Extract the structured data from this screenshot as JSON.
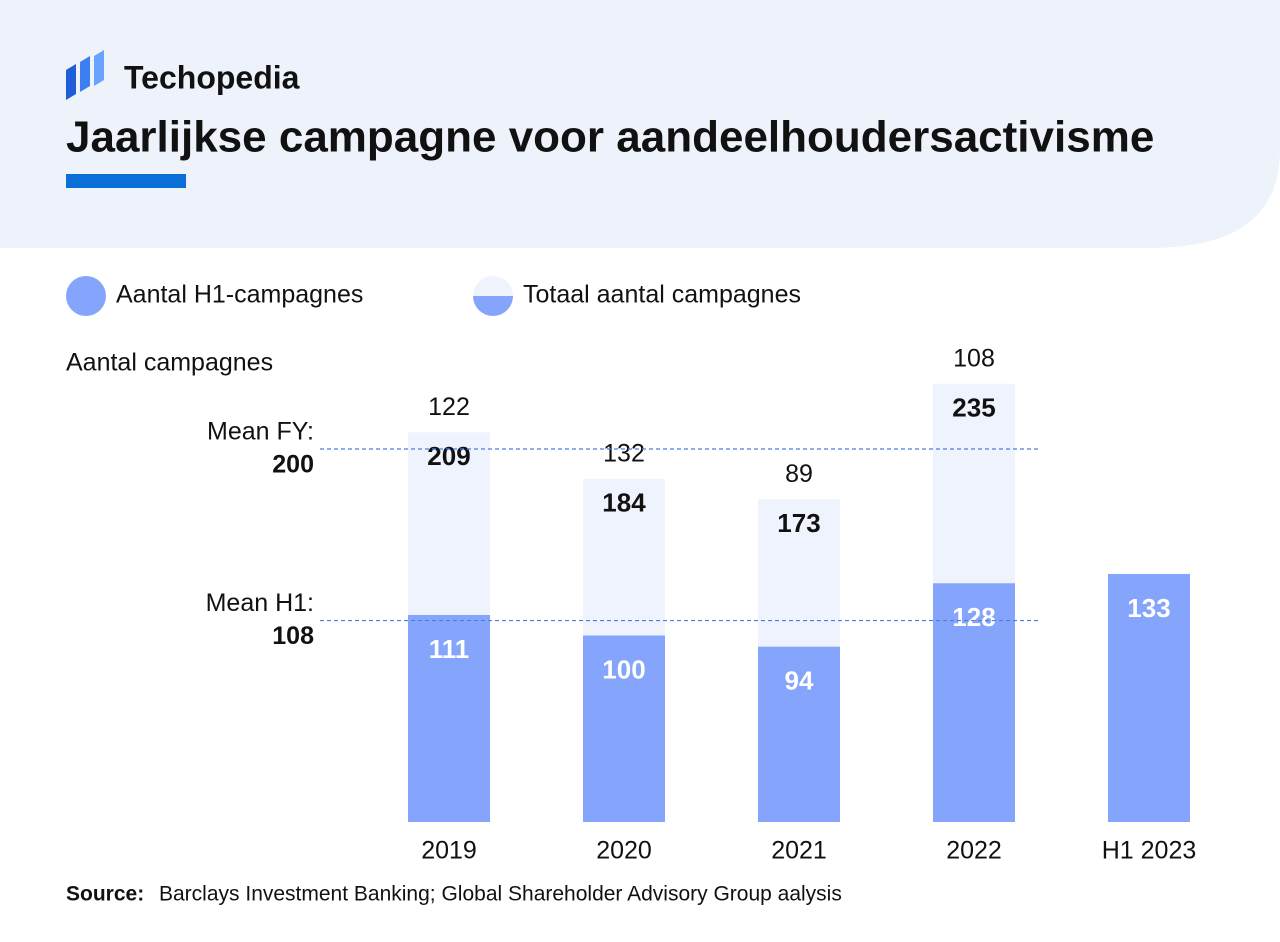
{
  "brand": "Techopedia",
  "chart_data": {
    "type": "overlap_bar",
    "title": "Jaarlijkse campagne voor aandeelhoudersactivisme",
    "y_label": "Aantal campagnes",
    "categories": [
      "2019",
      "2020",
      "2021",
      "2022",
      "H1 2023"
    ],
    "series": [
      {
        "name": "Totaal aantal campagnes",
        "color": "#eef3fd",
        "values": [
          209,
          184,
          173,
          235,
          null
        ]
      },
      {
        "name": "Aantal H1-campagnes",
        "color": "#85a4fb",
        "values": [
          111,
          100,
          94,
          128,
          133
        ]
      }
    ],
    "top_labels": [
      122,
      132,
      89,
      108,
      null
    ],
    "reference_lines": [
      {
        "label": "Mean FY:",
        "value": 200
      },
      {
        "label": "Mean H1:",
        "value": 108
      }
    ],
    "source_label": "Source:",
    "source": "Barclays Investment Banking; Global Shareholder Advisory Group aalysis"
  }
}
